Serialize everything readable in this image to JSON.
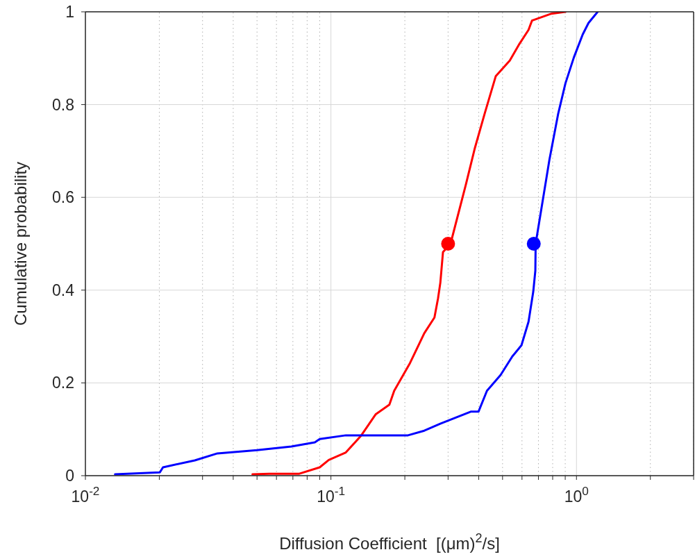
{
  "chart_data": {
    "type": "line",
    "xlabel": "Diffusion Coefficient  [(μm)$^{2}$/s]",
    "ylabel": "Cumulative probability",
    "log": "x",
    "grid": true,
    "line_style": "solid",
    "xlim": [
      0.01,
      3
    ],
    "ylim": [
      0,
      1
    ],
    "xticks": [
      {
        "value": 0.01,
        "label": "10$^{-2}$"
      },
      {
        "value": 0.02,
        "label": null
      },
      {
        "value": 0.03,
        "label": null
      },
      {
        "value": 0.04,
        "label": null
      },
      {
        "value": 0.05,
        "label": null
      },
      {
        "value": 0.06,
        "label": null
      },
      {
        "value": 0.07,
        "label": null
      },
      {
        "value": 0.08,
        "label": null
      },
      {
        "value": 0.09,
        "label": null
      },
      {
        "value": 0.1,
        "label": "10$^{-1}$"
      },
      {
        "value": 0.2,
        "label": null
      },
      {
        "value": 0.3,
        "label": null
      },
      {
        "value": 0.4,
        "label": null
      },
      {
        "value": 0.5,
        "label": null
      },
      {
        "value": 0.6,
        "label": null
      },
      {
        "value": 0.7,
        "label": null
      },
      {
        "value": 0.8,
        "label": null
      },
      {
        "value": 0.9,
        "label": null
      },
      {
        "value": 1,
        "label": "10$^{0}$"
      },
      {
        "value": 2,
        "label": null
      },
      {
        "value": 3,
        "label": null
      }
    ],
    "yticks": [
      0,
      0.2,
      0.4,
      0.6,
      0.8,
      1
    ],
    "series": [
      {
        "color": "#ff0000",
        "marker": "none",
        "x": [
          0.0479,
          0.056,
          0.074,
          0.09,
          0.098,
          0.115,
          0.133,
          0.152,
          0.173,
          0.181,
          0.21,
          0.24,
          0.264,
          0.273,
          0.279,
          0.286,
          0.307,
          0.355,
          0.386,
          0.423,
          0.469,
          0.535,
          0.586,
          0.638,
          0.659,
          0.791,
          0.902
        ],
        "values": [
          0.003,
          0.004,
          0.004,
          0.018,
          0.034,
          0.05,
          0.087,
          0.132,
          0.153,
          0.183,
          0.243,
          0.307,
          0.341,
          0.382,
          0.416,
          0.482,
          0.5,
          0.629,
          0.707,
          0.781,
          0.861,
          0.895,
          0.931,
          0.961,
          0.981,
          0.996,
          1
        ]
      },
      {
        "color": "#0000ff",
        "marker": "none",
        "x": [
          0.0132,
          0.0201,
          0.0207,
          0.0279,
          0.0345,
          0.05,
          0.069,
          0.086,
          0.09,
          0.115,
          0.206,
          0.24,
          0.279,
          0.371,
          0.399,
          0.432,
          0.491,
          0.548,
          0.597,
          0.638,
          0.667,
          0.68,
          0.682,
          0.776,
          0.843,
          0.902,
          0.975,
          1.06,
          1.12,
          1.22
        ],
        "values": [
          0.003,
          0.007,
          0.018,
          0.033,
          0.048,
          0.055,
          0.063,
          0.072,
          0.079,
          0.087,
          0.087,
          0.097,
          0.112,
          0.138,
          0.138,
          0.183,
          0.217,
          0.257,
          0.281,
          0.332,
          0.397,
          0.442,
          0.5,
          0.681,
          0.781,
          0.846,
          0.901,
          0.951,
          0.976,
          1
        ]
      },
      {
        "type": "scatter",
        "color": "#ff0000",
        "marker": "circle",
        "x": [
          0.3
        ],
        "values": [
          0.5
        ]
      },
      {
        "type": "scatter",
        "color": "#0000ff",
        "marker": "circle",
        "x": [
          0.67
        ],
        "values": [
          0.5
        ]
      }
    ]
  }
}
